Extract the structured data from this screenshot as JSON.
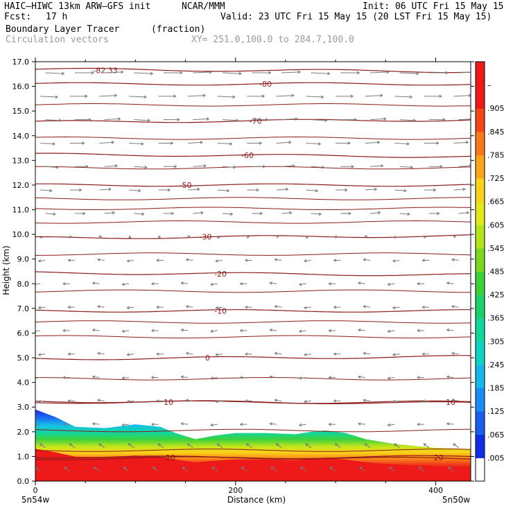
{
  "header": {
    "model": "HAIC–HIWC 13km ARW–GFS init",
    "org": "NCAR/MMM",
    "init": "Init: 06 UTC Fri 15 May 15",
    "fcst_label": "Fcst:",
    "fcst_value": "17 h",
    "valid": "Valid: 23 UTC Fri 15 May 15 (20 LST Fri 15 May 15)",
    "field": "Boundary Layer Tracer",
    "units": "(fraction)",
    "overlay": "Circulation vectors",
    "xy": "XY= 251.0,100.0 to 284.7,100.0"
  },
  "chart_data": {
    "type": "heatmap",
    "title": "Boundary Layer Tracer",
    "ylabel": "Height (km)",
    "xlabel": "Distance (km)",
    "xlim": [
      0,
      435
    ],
    "ylim": [
      0,
      17
    ],
    "yticks": [
      "0.0",
      "1.0",
      "2.0",
      "3.0",
      "4.0",
      "5.0",
      "6.0",
      "7.0",
      "8.0",
      "9.0",
      "10.0",
      "11.0",
      "12.0",
      "13.0",
      "14.0",
      "15.0",
      "16.0",
      "17.0"
    ],
    "xticks": [
      "0",
      "200",
      "400"
    ],
    "x_left_label": "5n54w",
    "x_right_label": "5n50w",
    "colorbar": {
      "labels": [
        ".005",
        ".065",
        ".125",
        ".185",
        ".245",
        ".305",
        ".365",
        ".425",
        ".485",
        ".545",
        ".605",
        ".665",
        ".725",
        ".785",
        ".845",
        ".905",
        "–"
      ],
      "colors": [
        "#ffffff",
        "#0f2ee8",
        "#1a5ef0",
        "#1b8cf5",
        "#14b8e8",
        "#10d4c2",
        "#10d89a",
        "#1ad268",
        "#3ed23a",
        "#7ad81e",
        "#b4e41a",
        "#e4e81a",
        "#fbd21a",
        "#fca41a",
        "#f9781a",
        "#f5461a",
        "#f01a1a",
        "#ee1a1a"
      ]
    },
    "boundary_layer_top_km": [
      [
        0,
        2.9
      ],
      [
        20,
        2.6
      ],
      [
        40,
        2.2
      ],
      [
        70,
        2.15
      ],
      [
        100,
        2.3
      ],
      [
        125,
        2.2
      ],
      [
        140,
        1.95
      ],
      [
        160,
        1.7
      ],
      [
        180,
        1.85
      ],
      [
        200,
        1.95
      ],
      [
        230,
        1.95
      ],
      [
        260,
        1.9
      ],
      [
        275,
        2.0
      ],
      [
        290,
        2.05
      ],
      [
        310,
        1.95
      ],
      [
        330,
        1.7
      ],
      [
        360,
        1.5
      ],
      [
        400,
        1.35
      ],
      [
        435,
        1.3
      ]
    ],
    "isotherms": [
      {
        "label": "-82.33",
        "y": 16.65,
        "xl": 70
      },
      {
        "label": "-80",
        "y": 16.1,
        "xl": 230
      },
      {
        "label": "-70",
        "y": 14.6,
        "xl": 220
      },
      {
        "label": "-60",
        "y": 13.2,
        "xl": 212
      },
      {
        "label": "-50",
        "y": 12.0,
        "xl": 150
      },
      {
        "label": "-30",
        "y": 9.9,
        "xl": 170
      },
      {
        "label": "-20",
        "y": 8.4,
        "xl": 185
      },
      {
        "label": "-10",
        "y": 6.9,
        "xl": 185
      },
      {
        "label": "0",
        "y": 5.0,
        "xl": 172
      },
      {
        "label": "10",
        "y": 3.2,
        "xl": 133
      },
      {
        "label": "10",
        "y": 3.2,
        "xl": 415
      },
      {
        "label": "20",
        "y": 0.95,
        "xl": 135
      },
      {
        "label": "20",
        "y": 0.95,
        "xl": 403
      }
    ],
    "grid": false,
    "legend": "right colorbar"
  }
}
